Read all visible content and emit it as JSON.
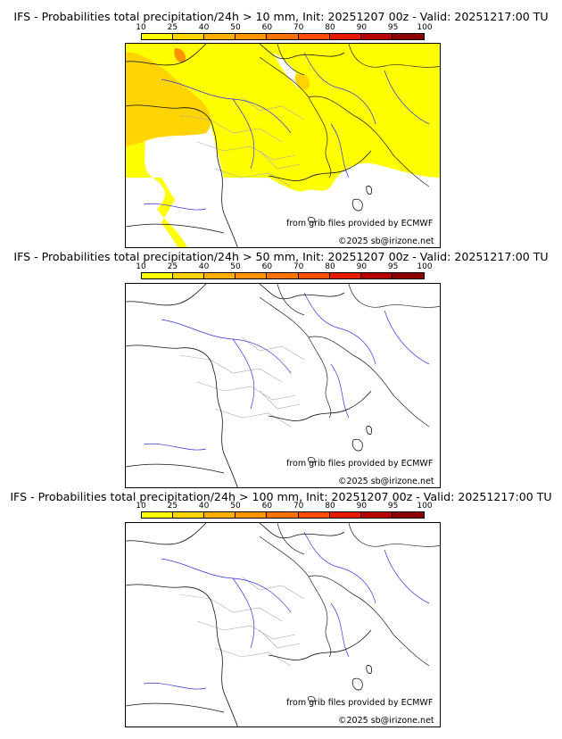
{
  "legend": {
    "ticks": [
      "10",
      "25",
      "40",
      "50",
      "60",
      "70",
      "80",
      "90",
      "95",
      "100"
    ],
    "colors": [
      "#ffff00",
      "#ffd400",
      "#ffb000",
      "#ff9400",
      "#ff7400",
      "#ff4c00",
      "#e81a00",
      "#b80000",
      "#8c0000"
    ]
  },
  "panels": [
    {
      "title": "IFS - Probabilities total precipitation/24h > 10 mm, Init: 20251207 00z - Valid: 20251217:00 TU",
      "credit_source": "from grib files provided by ECMWF",
      "credit_copyright": "©2025 sb@irizone.net",
      "fill": true
    },
    {
      "title": "IFS - Probabilities total precipitation/24h > 50 mm, Init: 20251207 00z - Valid: 20251217:00 TU",
      "credit_source": "from grib files provided by ECMWF",
      "credit_copyright": "©2025 sb@irizone.net",
      "fill": false
    },
    {
      "title": "IFS - Probabilities total precipitation/24h > 100 mm, Init: 20251207 00z - Valid: 20251217:00 TU",
      "credit_source": "from grib files provided by ECMWF",
      "credit_copyright": "©2025 sb@irizone.net",
      "fill": false
    }
  ]
}
